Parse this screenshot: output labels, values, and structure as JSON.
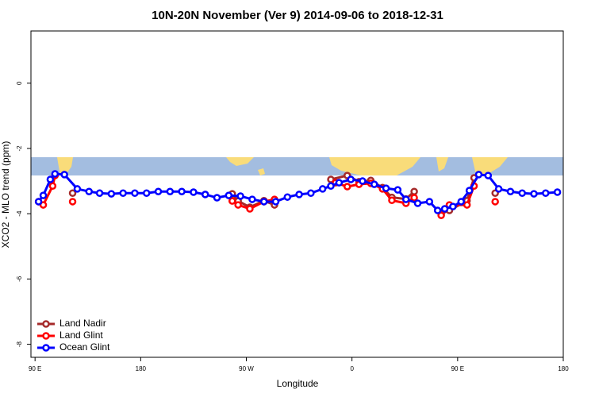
{
  "chart_data": {
    "type": "line",
    "title": "10N-20N November (Ver 9)   2014-09-06 to 2018-12-31",
    "x_label": "Longitude",
    "y_label": "XCO2 - MLO trend (ppm)",
    "xlim": [
      86.5,
      540
    ],
    "ylim": [
      -8.4,
      1.6
    ],
    "xticks": [
      {
        "value": 90,
        "label": "90 E"
      },
      180,
      {
        "value": 270,
        "label": "90 W"
      },
      {
        "value": 360,
        "label": "0"
      },
      {
        "value": 450,
        "label": "90 E"
      },
      {
        "value": 540,
        "label": "180"
      }
    ],
    "yticks": [
      0,
      -2,
      -4,
      -6,
      -8
    ],
    "legend": "bottom-left",
    "series": [
      {
        "name": "Land Nadir",
        "color": "#a52a2a",
        "x": [
          122,
          null,
          258,
          263,
          273,
          285,
          294,
          null,
          342,
          356,
          366,
          376,
          386,
          394,
          406,
          413,
          null,
          436,
          443,
          458,
          464,
          null,
          482
        ],
        "values": [
          -3.37,
          null,
          -3.39,
          -3.61,
          -3.8,
          -3.6,
          -3.73,
          null,
          -2.95,
          -2.83,
          -3.02,
          -2.98,
          -3.2,
          -3.5,
          -3.55,
          -3.32,
          null,
          -4.0,
          -3.9,
          -3.6,
          -2.9,
          null,
          -3.37
        ]
      },
      {
        "name": "Land Glint",
        "color": "#ff0000",
        "x": [
          93,
          97,
          105,
          107,
          null,
          122,
          null,
          258,
          263,
          273,
          285,
          294,
          null,
          346,
          356,
          366,
          376,
          386,
          394,
          406,
          413,
          null,
          436,
          443,
          458,
          464,
          null,
          482
        ],
        "values": [
          -3.63,
          -3.73,
          -3.15,
          -2.83,
          null,
          -3.63,
          null,
          -3.61,
          -3.73,
          -3.85,
          -3.63,
          -3.56,
          null,
          -3.05,
          -3.17,
          -3.1,
          -3.07,
          -3.24,
          -3.59,
          -3.68,
          -3.51,
          null,
          -4.05,
          -3.73,
          -3.73,
          -3.15,
          null,
          -3.63
        ]
      },
      {
        "name": "Ocean Glint",
        "color": "#0000ff",
        "x": [
          93,
          97,
          103,
          107,
          115,
          126,
          136,
          145,
          155,
          165,
          175,
          185,
          195,
          205,
          215,
          225,
          235,
          245,
          255,
          265,
          275,
          285,
          295,
          305,
          315,
          325,
          335,
          342,
          349,
          359,
          369,
          379,
          389,
          399,
          406,
          416,
          426,
          433,
          439,
          446,
          453,
          460,
          468,
          476,
          485,
          495,
          505,
          515,
          525,
          535
        ],
        "values": [
          -3.63,
          -3.44,
          -2.95,
          -2.78,
          -2.8,
          -3.24,
          -3.32,
          -3.37,
          -3.39,
          -3.37,
          -3.37,
          -3.37,
          -3.32,
          -3.32,
          -3.32,
          -3.34,
          -3.41,
          -3.51,
          -3.44,
          -3.46,
          -3.56,
          -3.63,
          -3.63,
          -3.49,
          -3.41,
          -3.37,
          -3.24,
          -3.15,
          -3.05,
          -2.95,
          -3.0,
          -3.1,
          -3.22,
          -3.27,
          -3.56,
          -3.68,
          -3.63,
          -3.9,
          -3.85,
          -3.78,
          -3.63,
          -3.29,
          -2.8,
          -2.83,
          -3.24,
          -3.32,
          -3.37,
          -3.39,
          -3.37,
          -3.34
        ]
      }
    ]
  }
}
